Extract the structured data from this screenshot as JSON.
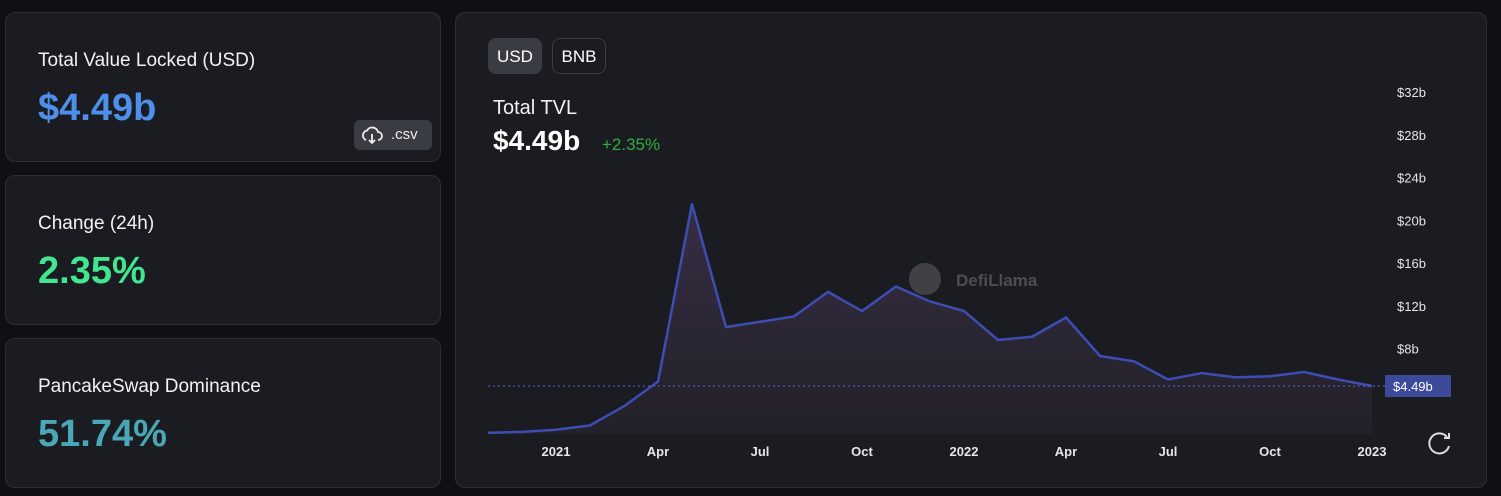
{
  "cards": [
    {
      "label": "Total Value Locked (USD)",
      "value": "$4.49b",
      "button": ".csv"
    },
    {
      "label": "Change (24h)",
      "value": "2.35%"
    },
    {
      "label": "PancakeSwap Dominance",
      "value": "51.74%"
    }
  ],
  "toggles": [
    "USD",
    "BNB"
  ],
  "chart_data": {
    "type": "area",
    "title": "Total TVL",
    "headline": "$4.49b",
    "change": "+2.35%",
    "watermark": "DefiLlama",
    "color": "#3d4db3",
    "x": [
      "2020-11",
      "2020-12",
      "2021-01",
      "2021-02",
      "2021-03",
      "2021-04",
      "2021-05",
      "2021-06",
      "2021-07",
      "2021-08",
      "2021-09",
      "2021-10",
      "2021-11",
      "2021-12",
      "2022-01",
      "2022-02",
      "2022-03",
      "2022-04",
      "2022-05",
      "2022-06",
      "2022-07",
      "2022-08",
      "2022-09",
      "2022-10",
      "2022-11",
      "2022-12",
      "2023-01"
    ],
    "values": [
      0.1,
      0.2,
      0.4,
      0.8,
      2.6,
      4.9,
      21.5,
      10,
      10.5,
      11,
      13.3,
      11.5,
      13.8,
      12.4,
      11.5,
      8.8,
      9.1,
      10.9,
      7.3,
      6.8,
      5.1,
      5.7,
      5.3,
      5.4,
      5.8,
      5.1,
      4.49
    ],
    "xlim": [
      "2020-11",
      "2023-01"
    ],
    "xticks": [
      {
        "value": "2021-01",
        "label": "2021"
      },
      {
        "value": "2021-04",
        "label": "Apr"
      },
      {
        "value": "2021-07",
        "label": "Jul"
      },
      {
        "value": "2021-10",
        "label": "Oct"
      },
      {
        "value": "2022-01",
        "label": "2022"
      },
      {
        "value": "2022-04",
        "label": "Apr"
      },
      {
        "value": "2022-07",
        "label": "Jul"
      },
      {
        "value": "2022-10",
        "label": "Oct"
      },
      {
        "value": "2023-01",
        "label": "2023"
      }
    ],
    "ylim": [
      0,
      32
    ],
    "yticks": [
      {
        "value": 8,
        "label": "$8b"
      },
      {
        "value": 12,
        "label": "$12b"
      },
      {
        "value": 16,
        "label": "$16b"
      },
      {
        "value": 20,
        "label": "$20b"
      },
      {
        "value": 24,
        "label": "$24b"
      },
      {
        "value": 28,
        "label": "$28b"
      },
      {
        "value": 32,
        "label": "$32b"
      }
    ],
    "reference_line": {
      "value": 4.49,
      "label": "$4.49b"
    }
  }
}
